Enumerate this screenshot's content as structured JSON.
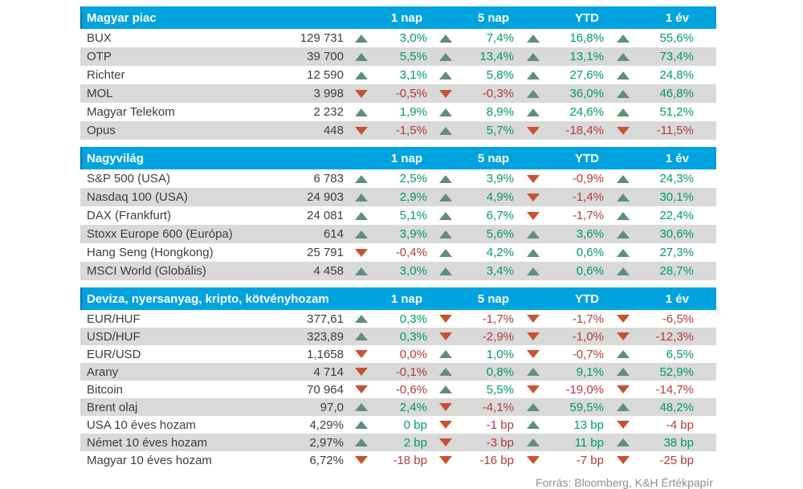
{
  "columns": [
    "1 nap",
    "5 nap",
    "YTD",
    "1 év"
  ],
  "footer": {
    "text": "Forrás: Bloomberg, K&H Értékpapír"
  },
  "colors": {
    "header_bg": "#00a3dd",
    "header_accent": "#0072a3",
    "row_alt_bg": "#d9d9d9",
    "up_text": "#009a60",
    "up_arrow": "#5e8f79",
    "down_text": "#b23a3f",
    "down_arrow": "#c75233",
    "text": "#3d3d3d",
    "footer_text": "#8f8f8f"
  },
  "sections": [
    {
      "title": "Magyar piac",
      "rows": [
        {
          "name": "BUX",
          "value": "129 731",
          "changes": [
            {
              "dir": "up",
              "text": "3,0%"
            },
            {
              "dir": "up",
              "text": "7,4%"
            },
            {
              "dir": "up",
              "text": "16,8%"
            },
            {
              "dir": "up",
              "text": "55,6%"
            }
          ]
        },
        {
          "name": "OTP",
          "value": "39 700",
          "changes": [
            {
              "dir": "up",
              "text": "5,5%"
            },
            {
              "dir": "up",
              "text": "13,4%"
            },
            {
              "dir": "up",
              "text": "13,1%"
            },
            {
              "dir": "up",
              "text": "73,4%"
            }
          ]
        },
        {
          "name": "Richter",
          "value": "12 590",
          "changes": [
            {
              "dir": "up",
              "text": "3,1%"
            },
            {
              "dir": "up",
              "text": "5,8%"
            },
            {
              "dir": "up",
              "text": "27,6%"
            },
            {
              "dir": "up",
              "text": "24,8%"
            }
          ]
        },
        {
          "name": "MOL",
          "value": "3 998",
          "changes": [
            {
              "dir": "down",
              "text": "-0,5%"
            },
            {
              "dir": "down",
              "text": "-0,3%"
            },
            {
              "dir": "up",
              "text": "36,0%"
            },
            {
              "dir": "up",
              "text": "46,8%"
            }
          ]
        },
        {
          "name": "Magyar Telekom",
          "value": "2 232",
          "changes": [
            {
              "dir": "up",
              "text": "1,9%"
            },
            {
              "dir": "up",
              "text": "8,9%"
            },
            {
              "dir": "up",
              "text": "24,6%"
            },
            {
              "dir": "up",
              "text": "51,2%"
            }
          ]
        },
        {
          "name": "Opus",
          "value": "448",
          "changes": [
            {
              "dir": "down",
              "text": "-1,5%"
            },
            {
              "dir": "up",
              "text": "5,7%"
            },
            {
              "dir": "down",
              "text": "-18,4%"
            },
            {
              "dir": "down",
              "text": "-11,5%"
            }
          ]
        }
      ]
    },
    {
      "title": "Nagyvilág",
      "rows": [
        {
          "name": "S&P 500 (USA)",
          "value": "6 783",
          "changes": [
            {
              "dir": "up",
              "text": "2,5%"
            },
            {
              "dir": "up",
              "text": "3,9%"
            },
            {
              "dir": "down",
              "text": "-0,9%"
            },
            {
              "dir": "up",
              "text": "24,3%"
            }
          ]
        },
        {
          "name": "Nasdaq 100 (USA)",
          "value": "24 903",
          "changes": [
            {
              "dir": "up",
              "text": "2,9%"
            },
            {
              "dir": "up",
              "text": "4,9%"
            },
            {
              "dir": "down",
              "text": "-1,4%"
            },
            {
              "dir": "up",
              "text": "30,1%"
            }
          ]
        },
        {
          "name": "DAX (Frankfurt)",
          "value": "24 081",
          "changes": [
            {
              "dir": "up",
              "text": "5,1%"
            },
            {
              "dir": "up",
              "text": "6,7%"
            },
            {
              "dir": "down",
              "text": "-1,7%"
            },
            {
              "dir": "up",
              "text": "22,4%"
            }
          ]
        },
        {
          "name": "Stoxx Europe 600 (Európa)",
          "value": "614",
          "changes": [
            {
              "dir": "up",
              "text": "3,9%"
            },
            {
              "dir": "up",
              "text": "5,6%"
            },
            {
              "dir": "up",
              "text": "3,6%"
            },
            {
              "dir": "up",
              "text": "30,6%"
            }
          ]
        },
        {
          "name": "Hang Seng (Hongkong)",
          "value": "25 791",
          "changes": [
            {
              "dir": "down",
              "text": "-0,4%"
            },
            {
              "dir": "up",
              "text": "4,2%"
            },
            {
              "dir": "up",
              "text": "0,6%"
            },
            {
              "dir": "up",
              "text": "27,3%"
            }
          ]
        },
        {
          "name": "MSCI World (Globális)",
          "value": "4 458",
          "changes": [
            {
              "dir": "up",
              "text": "3,0%"
            },
            {
              "dir": "up",
              "text": "3,4%"
            },
            {
              "dir": "up",
              "text": "0,6%"
            },
            {
              "dir": "up",
              "text": "28,7%"
            }
          ]
        }
      ]
    },
    {
      "title": "Deviza, nyersanyag, kripto, kötvényhozam",
      "rows": [
        {
          "name": "EUR/HUF",
          "value": "377,61",
          "changes": [
            {
              "dir": "up",
              "text": "0,3%"
            },
            {
              "dir": "down",
              "text": "-1,7%"
            },
            {
              "dir": "down",
              "text": "-1,7%"
            },
            {
              "dir": "down",
              "text": "-6,5%"
            }
          ]
        },
        {
          "name": "USD/HUF",
          "value": "323,89",
          "changes": [
            {
              "dir": "up",
              "text": "0,3%"
            },
            {
              "dir": "down",
              "text": "-2,9%"
            },
            {
              "dir": "down",
              "text": "-1,0%"
            },
            {
              "dir": "down",
              "text": "-12,3%"
            }
          ]
        },
        {
          "name": "EUR/USD",
          "value": "1,1658",
          "changes": [
            {
              "dir": "down",
              "text": "0,0%"
            },
            {
              "dir": "up",
              "text": "1,0%"
            },
            {
              "dir": "down",
              "text": "-0,7%"
            },
            {
              "dir": "up",
              "text": "6,5%"
            }
          ]
        },
        {
          "name": "Arany",
          "value": "4 714",
          "changes": [
            {
              "dir": "down",
              "text": "-0,1%"
            },
            {
              "dir": "up",
              "text": "0,8%"
            },
            {
              "dir": "up",
              "text": "9,1%"
            },
            {
              "dir": "up",
              "text": "52,9%"
            }
          ]
        },
        {
          "name": "Bitcoin",
          "value": "70 964",
          "changes": [
            {
              "dir": "down",
              "text": "-0,6%"
            },
            {
              "dir": "up",
              "text": "5,5%"
            },
            {
              "dir": "down",
              "text": "-19,0%"
            },
            {
              "dir": "down",
              "text": "-14,7%"
            }
          ]
        },
        {
          "name": "Brent olaj",
          "value": "97,0",
          "changes": [
            {
              "dir": "up",
              "text": "2,4%"
            },
            {
              "dir": "down",
              "text": "-4,1%"
            },
            {
              "dir": "up",
              "text": "59,5%"
            },
            {
              "dir": "up",
              "text": "48,2%"
            }
          ]
        },
        {
          "name": "USA 10 éves hozam",
          "value": "4,29%",
          "changes": [
            {
              "dir": "up",
              "text": "0 bp"
            },
            {
              "dir": "down",
              "text": "-1 bp"
            },
            {
              "dir": "up",
              "text": "13 bp"
            },
            {
              "dir": "down",
              "text": "-4 bp"
            }
          ]
        },
        {
          "name": "Német 10 éves hozam",
          "value": "2,97%",
          "changes": [
            {
              "dir": "up",
              "text": "2 bp"
            },
            {
              "dir": "down",
              "text": "-3 bp"
            },
            {
              "dir": "up",
              "text": "11 bp"
            },
            {
              "dir": "up",
              "text": "38 bp"
            }
          ]
        },
        {
          "name": "Magyar 10 éves hozam",
          "value": "6,72%",
          "changes": [
            {
              "dir": "down",
              "text": "-18 bp"
            },
            {
              "dir": "down",
              "text": "-16 bp"
            },
            {
              "dir": "down",
              "text": "-7 bp"
            },
            {
              "dir": "down",
              "text": "-25 bp"
            }
          ]
        }
      ]
    }
  ]
}
